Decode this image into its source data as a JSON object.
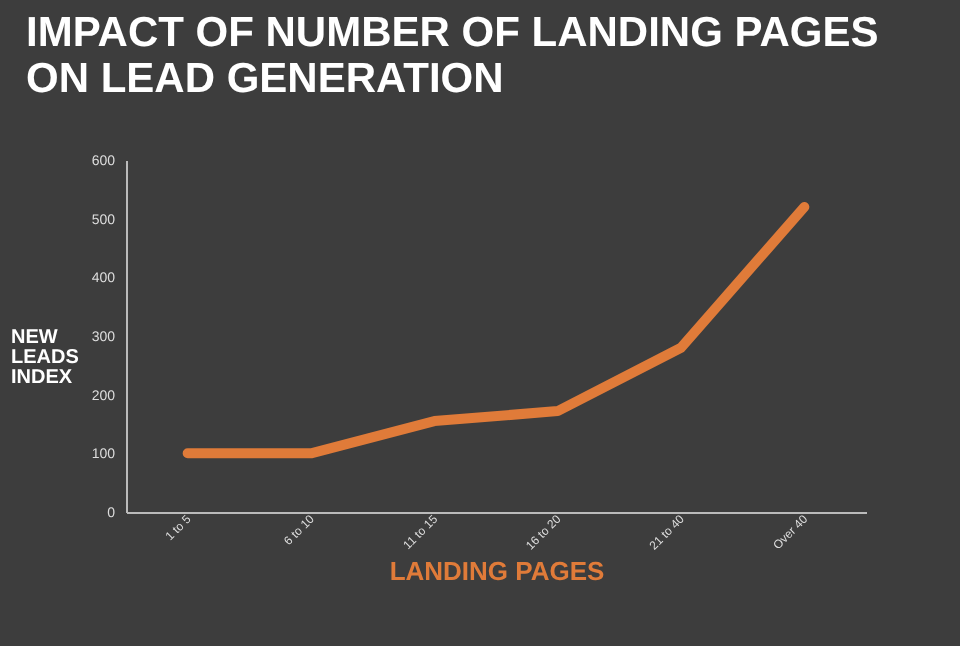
{
  "chart_data": {
    "type": "line",
    "title": "IMPACT OF NUMBER OF LANDING PAGES\nON LEAD GENERATION",
    "xlabel": "LANDING PAGES",
    "ylabel": "NEW\nLEADS\nINDEX",
    "categories": [
      "1 to 5",
      "6 to 10",
      "11 to 15",
      "16 to 20",
      "21 to 40",
      "Over 40"
    ],
    "series": [
      {
        "color": "#e07b39",
        "values": [
          100,
          100,
          155,
          172,
          280,
          520
        ]
      }
    ],
    "ylim": [
      0,
      600
    ],
    "yticks": [
      0,
      100,
      200,
      300,
      400,
      500,
      600
    ],
    "grid": false,
    "legend": false,
    "marker": "none",
    "line_style": "solid"
  }
}
